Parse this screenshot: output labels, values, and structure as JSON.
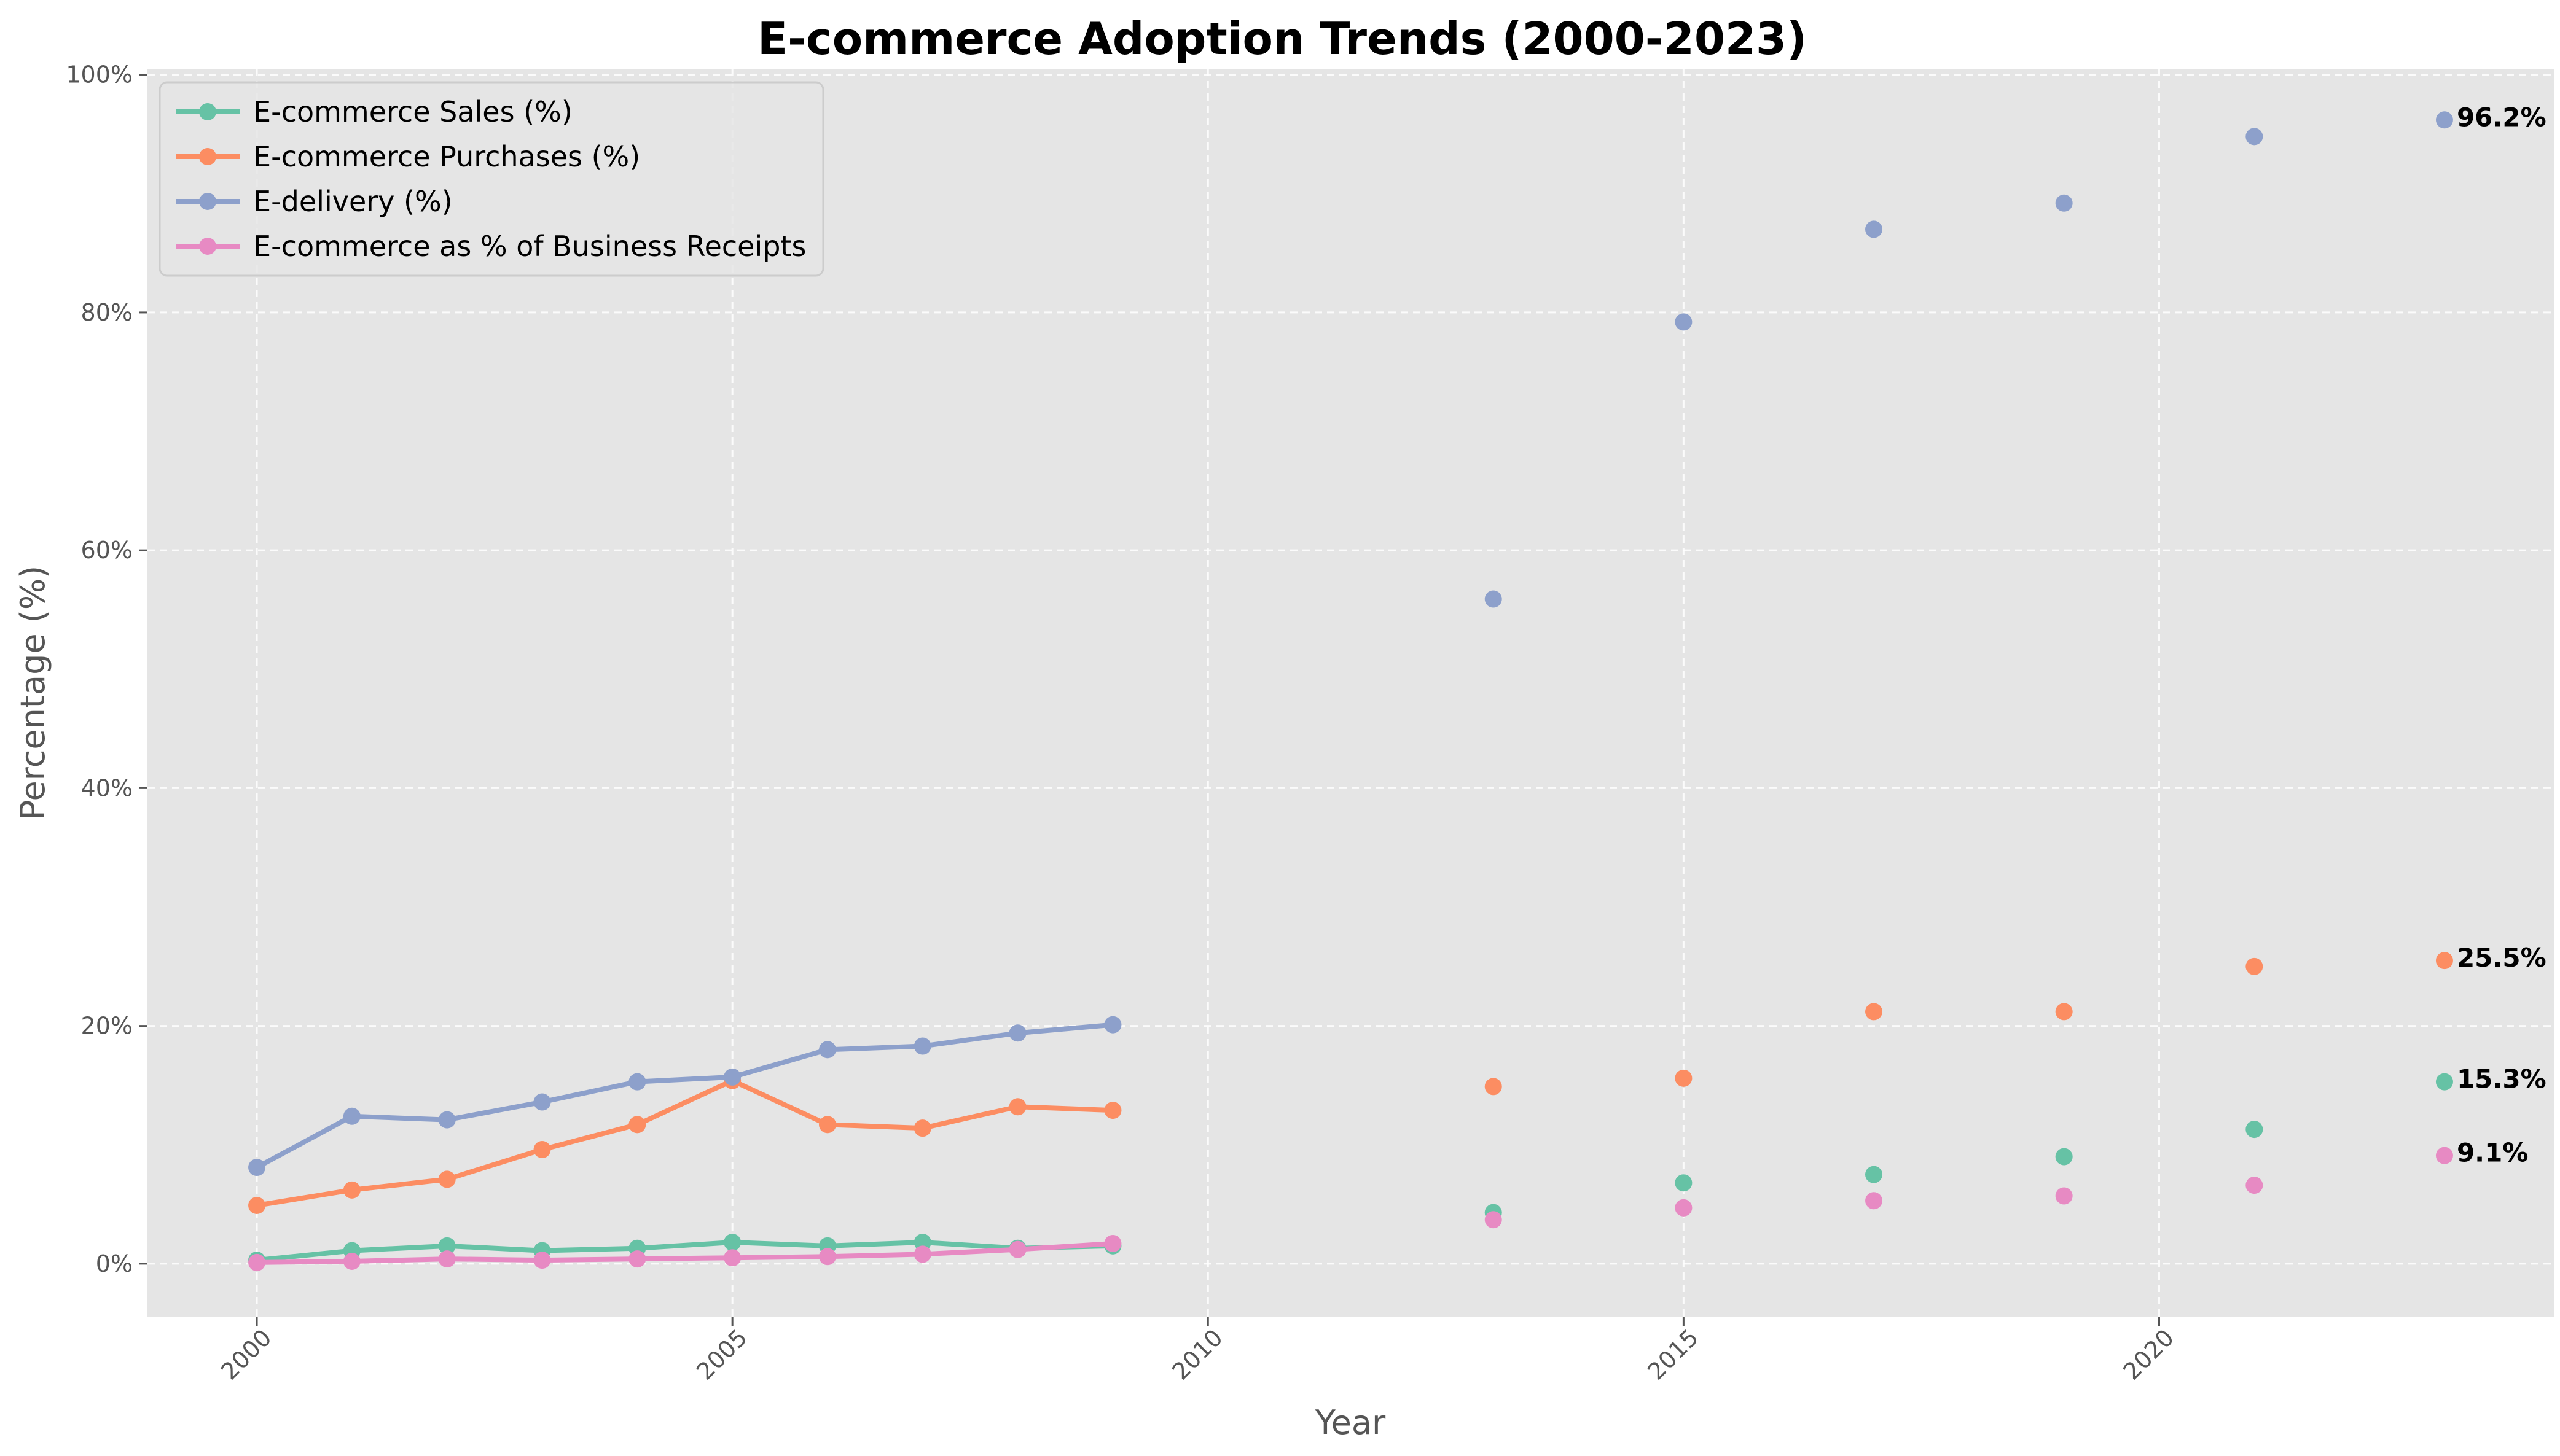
{
  "chart_data": {
    "type": "line",
    "title": "E-commerce Adoption Trends (2000-2023)",
    "xlabel": "Year",
    "ylabel": "Percentage (%)",
    "xlim": [
      1998.85,
      2024.15
    ],
    "ylim": [
      -4.5,
      100.5
    ],
    "x_ticks": [
      2000,
      2005,
      2010,
      2015,
      2020
    ],
    "x_tick_labels": [
      "2000",
      "2005",
      "2010",
      "2015",
      "2020"
    ],
    "y_ticks": [
      0,
      20,
      40,
      60,
      80,
      100
    ],
    "y_tick_labels": [
      "0%",
      "20%",
      "40%",
      "60%",
      "80%",
      "100%"
    ],
    "grid": true,
    "legend_position": "top-left",
    "background": "#e5e5e5",
    "x": [
      2000,
      2001,
      2002,
      2003,
      2004,
      2005,
      2006,
      2007,
      2008,
      2009,
      2010,
      2011,
      2012,
      2013,
      2014,
      2015,
      2016,
      2017,
      2018,
      2019,
      2020,
      2021,
      2022,
      2023
    ],
    "series": [
      {
        "name": "E-commerce Sales (%)",
        "color": "#66c2a5",
        "values": [
          0.3,
          1.1,
          1.5,
          1.1,
          1.3,
          1.8,
          1.5,
          1.8,
          1.3,
          1.5,
          null,
          null,
          null,
          4.3,
          null,
          6.8,
          null,
          7.5,
          null,
          9.0,
          null,
          11.3,
          null,
          15.3
        ],
        "end_label": "15.3%"
      },
      {
        "name": "E-commerce Purchases (%)",
        "color": "#fc8d62",
        "values": [
          4.9,
          6.2,
          7.1,
          9.6,
          11.7,
          15.4,
          11.7,
          11.4,
          13.2,
          12.9,
          null,
          null,
          null,
          14.9,
          null,
          15.6,
          null,
          21.2,
          null,
          21.2,
          null,
          25.0,
          null,
          25.5
        ],
        "end_label": "25.5%"
      },
      {
        "name": "E-delivery (%)",
        "color": "#8da0cb",
        "values": [
          8.1,
          12.4,
          12.1,
          13.6,
          15.3,
          15.7,
          18.0,
          18.3,
          19.4,
          20.1,
          null,
          null,
          null,
          55.9,
          null,
          79.2,
          null,
          87.0,
          null,
          89.2,
          null,
          94.8,
          null,
          96.2
        ],
        "end_label": "96.2%"
      },
      {
        "name": "E-commerce as % of Business Receipts",
        "color": "#e78ac3",
        "values": [
          0.1,
          0.2,
          0.4,
          0.3,
          0.4,
          0.5,
          0.6,
          0.8,
          1.2,
          1.7,
          null,
          null,
          null,
          3.7,
          null,
          4.7,
          null,
          5.3,
          null,
          5.7,
          null,
          6.6,
          null,
          9.1
        ],
        "end_label": "9.1%"
      }
    ]
  }
}
